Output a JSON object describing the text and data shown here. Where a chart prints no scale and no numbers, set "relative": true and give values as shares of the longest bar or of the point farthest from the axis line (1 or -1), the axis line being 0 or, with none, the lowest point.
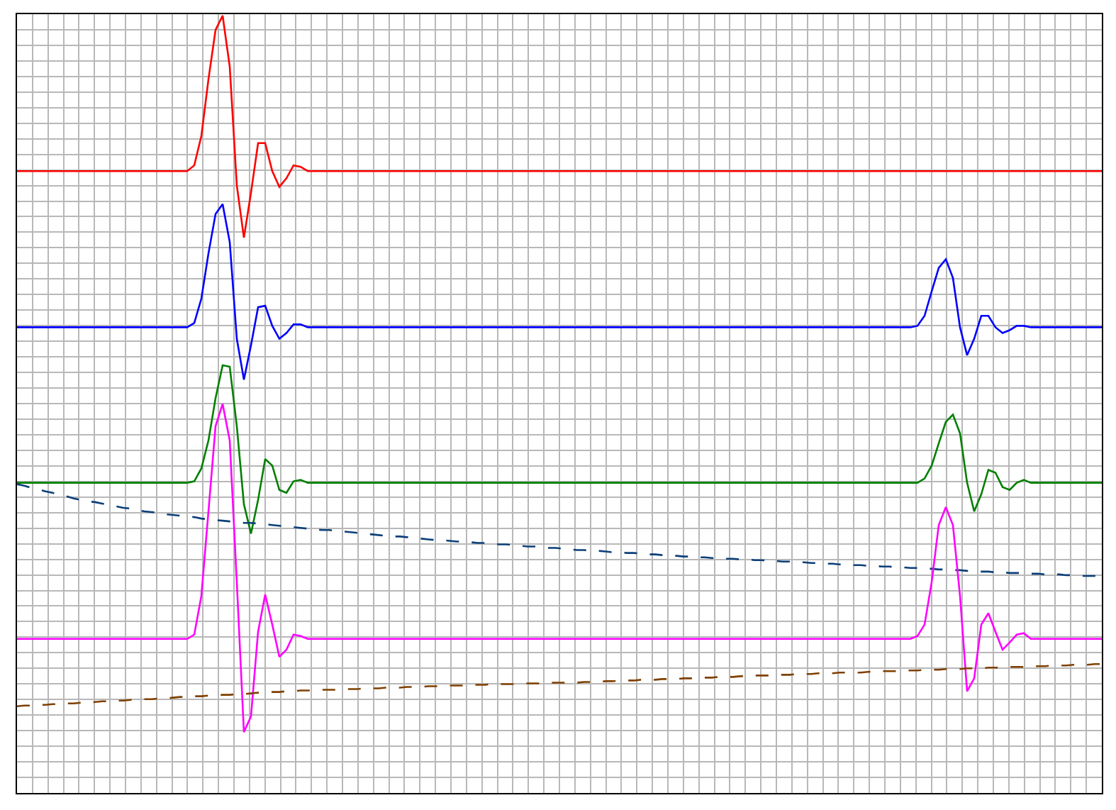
{
  "chart_data": {
    "type": "line",
    "relative": true,
    "grid": true,
    "marker": "none",
    "categories": [
      null,
      null,
      null,
      null,
      null,
      null,
      null,
      null,
      null,
      null,
      null,
      null,
      null,
      null,
      null,
      null,
      null,
      null,
      null,
      null,
      null,
      null,
      null,
      null,
      null,
      null,
      null,
      null,
      null,
      null,
      null,
      null,
      null,
      null,
      null,
      null,
      null,
      null,
      null,
      null,
      null,
      null,
      null,
      null,
      null,
      null,
      null,
      null,
      null,
      null,
      null,
      null,
      null,
      null,
      null,
      null,
      null,
      null,
      null,
      null,
      null,
      null,
      null,
      null,
      null,
      null,
      null,
      null,
      null,
      null,
      null,
      null,
      null,
      null,
      null,
      null,
      null,
      null,
      null,
      null,
      null,
      null,
      null,
      null,
      null,
      null,
      null,
      null,
      null,
      null,
      null,
      null,
      null,
      null,
      null,
      null,
      null,
      null,
      null,
      null,
      null,
      null,
      null,
      null,
      null,
      null,
      null,
      null,
      null,
      null,
      null,
      null,
      null,
      null,
      null,
      null,
      null,
      null,
      null,
      null,
      null,
      null,
      null,
      null,
      null,
      null,
      null,
      null,
      null,
      null,
      null,
      null,
      null,
      null,
      null,
      null,
      null,
      null,
      null,
      null,
      null,
      null,
      null,
      null,
      null,
      null,
      null,
      null,
      null,
      null,
      null,
      null,
      null,
      null
    ],
    "series": [
      {
        "color": "#ff0000",
        "line_style": "solid",
        "values": [
          0.783,
          0.783,
          0.783,
          0.783,
          0.783,
          0.783,
          0.783,
          0.783,
          0.783,
          0.783,
          0.783,
          0.783,
          0.783,
          0.783,
          0.783,
          0.783,
          0.783,
          0.783,
          0.783,
          0.783,
          0.783,
          0.783,
          0.783,
          0.783,
          0.783,
          0.791,
          0.832,
          0.911,
          0.98,
          1,
          0.929,
          0.763,
          0.69,
          0.753,
          0.822,
          0.822,
          0.783,
          0.761,
          0.773,
          0.791,
          0.789,
          0.783,
          0.783,
          0.783,
          0.783,
          0.783,
          0.783,
          0.783,
          0.783,
          0.783,
          0.783,
          0.783,
          0.783,
          0.783,
          0.783,
          0.783,
          0.783,
          0.783,
          0.783,
          0.783,
          0.783,
          0.783,
          0.783,
          0.783,
          0.783,
          0.783,
          0.783,
          0.783,
          0.783,
          0.783,
          0.783,
          0.783,
          0.783,
          0.783,
          0.783,
          0.783,
          0.783,
          0.783,
          0.783,
          0.783,
          0.783,
          0.783,
          0.783,
          0.783,
          0.783,
          0.783,
          0.783,
          0.783,
          0.783,
          0.783,
          0.783,
          0.783,
          0.783,
          0.783,
          0.783,
          0.783,
          0.783,
          0.783,
          0.783,
          0.783,
          0.783,
          0.783,
          0.783,
          0.783,
          0.783,
          0.783,
          0.783,
          0.783,
          0.783,
          0.783,
          0.783,
          0.783,
          0.783,
          0.783,
          0.783,
          0.783,
          0.783,
          0.783,
          0.783,
          0.783,
          0.783,
          0.783,
          0.783,
          0.783,
          0.783,
          0.783,
          0.783,
          0.783,
          0.783,
          0.783,
          0.783,
          0.783,
          0.783,
          0.783,
          0.783,
          0.783,
          0.783,
          0.783,
          0.783,
          0.783,
          0.783,
          0.783,
          0.783,
          0.783,
          0.783,
          0.783,
          0.783,
          0.783,
          0.783,
          0.783,
          0.783,
          0.783,
          0.783,
          0.783
        ]
      },
      {
        "color": "#0000ff",
        "line_style": "solid",
        "values": [
          0.565,
          0.565,
          0.565,
          0.565,
          0.565,
          0.565,
          0.565,
          0.565,
          0.565,
          0.565,
          0.565,
          0.565,
          0.565,
          0.565,
          0.565,
          0.565,
          0.565,
          0.565,
          0.565,
          0.565,
          0.565,
          0.565,
          0.565,
          0.565,
          0.565,
          0.571,
          0.605,
          0.668,
          0.723,
          0.737,
          0.684,
          0.549,
          0.492,
          0.54,
          0.593,
          0.595,
          0.567,
          0.549,
          0.557,
          0.569,
          0.569,
          0.565,
          0.565,
          0.565,
          0.565,
          0.565,
          0.565,
          0.565,
          0.565,
          0.565,
          0.565,
          0.565,
          0.565,
          0.565,
          0.565,
          0.565,
          0.565,
          0.565,
          0.565,
          0.565,
          0.565,
          0.565,
          0.565,
          0.565,
          0.565,
          0.565,
          0.565,
          0.565,
          0.565,
          0.565,
          0.565,
          0.565,
          0.565,
          0.565,
          0.565,
          0.565,
          0.565,
          0.565,
          0.565,
          0.565,
          0.565,
          0.565,
          0.565,
          0.565,
          0.565,
          0.565,
          0.565,
          0.565,
          0.565,
          0.565,
          0.565,
          0.565,
          0.565,
          0.565,
          0.565,
          0.565,
          0.565,
          0.565,
          0.565,
          0.565,
          0.565,
          0.565,
          0.565,
          0.565,
          0.565,
          0.565,
          0.565,
          0.565,
          0.565,
          0.565,
          0.565,
          0.565,
          0.565,
          0.565,
          0.565,
          0.565,
          0.565,
          0.565,
          0.565,
          0.565,
          0.565,
          0.565,
          0.565,
          0.565,
          0.565,
          0.565,
          0.565,
          0.567,
          0.581,
          0.615,
          0.648,
          0.66,
          0.634,
          0.565,
          0.526,
          0.549,
          0.581,
          0.581,
          0.565,
          0.557,
          0.561,
          0.567,
          0.567,
          0.565,
          0.565,
          0.565,
          0.565,
          0.565,
          0.565,
          0.565,
          0.565,
          0.565,
          0.565,
          0.565
        ]
      },
      {
        "color": "#008000",
        "line_style": "solid",
        "values": [
          0.348,
          0.348,
          0.348,
          0.348,
          0.348,
          0.348,
          0.348,
          0.348,
          0.348,
          0.348,
          0.348,
          0.348,
          0.348,
          0.348,
          0.348,
          0.348,
          0.348,
          0.348,
          0.348,
          0.348,
          0.348,
          0.348,
          0.348,
          0.348,
          0.348,
          0.35,
          0.368,
          0.407,
          0.466,
          0.512,
          0.51,
          0.427,
          0.318,
          0.277,
          0.324,
          0.381,
          0.372,
          0.338,
          0.334,
          0.35,
          0.352,
          0.348,
          0.348,
          0.348,
          0.348,
          0.348,
          0.348,
          0.348,
          0.348,
          0.348,
          0.348,
          0.348,
          0.348,
          0.348,
          0.348,
          0.348,
          0.348,
          0.348,
          0.348,
          0.348,
          0.348,
          0.348,
          0.348,
          0.348,
          0.348,
          0.348,
          0.348,
          0.348,
          0.348,
          0.348,
          0.348,
          0.348,
          0.348,
          0.348,
          0.348,
          0.348,
          0.348,
          0.348,
          0.348,
          0.348,
          0.348,
          0.348,
          0.348,
          0.348,
          0.348,
          0.348,
          0.348,
          0.348,
          0.348,
          0.348,
          0.348,
          0.348,
          0.348,
          0.348,
          0.348,
          0.348,
          0.348,
          0.348,
          0.348,
          0.348,
          0.348,
          0.348,
          0.348,
          0.348,
          0.348,
          0.348,
          0.348,
          0.348,
          0.348,
          0.348,
          0.348,
          0.348,
          0.348,
          0.348,
          0.348,
          0.348,
          0.348,
          0.348,
          0.348,
          0.348,
          0.348,
          0.348,
          0.348,
          0.348,
          0.348,
          0.348,
          0.348,
          0.348,
          0.354,
          0.372,
          0.403,
          0.433,
          0.443,
          0.417,
          0.348,
          0.308,
          0.332,
          0.366,
          0.362,
          0.342,
          0.338,
          0.348,
          0.352,
          0.348,
          0.348,
          0.348,
          0.348,
          0.348,
          0.348,
          0.348,
          0.348,
          0.348,
          0.348,
          0.348
        ]
      },
      {
        "color": "#0b3f78",
        "line_style": "dashed",
        "values": [
          0.346,
          0.344,
          0.341,
          0.339,
          0.336,
          0.334,
          0.331,
          0.329,
          0.326,
          0.324,
          0.322,
          0.321,
          0.319,
          0.317,
          0.315,
          0.313,
          0.312,
          0.31,
          0.308,
          0.307,
          0.306,
          0.304,
          0.303,
          0.302,
          0.301,
          0.3,
          0.298,
          0.297,
          0.296,
          0.295,
          0.294,
          0.293,
          0.292,
          0.292,
          0.291,
          0.29,
          0.289,
          0.288,
          0.287,
          0.286,
          0.285,
          0.284,
          0.283,
          0.282,
          0.282,
          0.281,
          0.28,
          0.279,
          0.278,
          0.277,
          0.276,
          0.275,
          0.274,
          0.273,
          0.273,
          0.272,
          0.271,
          0.27,
          0.269,
          0.268,
          0.268,
          0.267,
          0.266,
          0.266,
          0.265,
          0.264,
          0.264,
          0.263,
          0.262,
          0.262,
          0.261,
          0.26,
          0.259,
          0.259,
          0.258,
          0.257,
          0.257,
          0.256,
          0.255,
          0.254,
          0.254,
          0.253,
          0.253,
          0.252,
          0.251,
          0.251,
          0.25,
          0.25,
          0.249,
          0.248,
          0.248,
          0.247,
          0.247,
          0.246,
          0.245,
          0.245,
          0.244,
          0.244,
          0.243,
          0.243,
          0.242,
          0.242,
          0.241,
          0.241,
          0.24,
          0.24,
          0.239,
          0.239,
          0.238,
          0.238,
          0.237,
          0.237,
          0.236,
          0.236,
          0.235,
          0.235,
          0.234,
          0.234,
          0.233,
          0.233,
          0.232,
          0.232,
          0.231,
          0.231,
          0.23,
          0.23,
          0.229,
          0.229,
          0.228,
          0.228,
          0.227,
          0.227,
          0.226,
          0.226,
          0.225,
          0.225,
          0.224,
          0.224,
          0.223,
          0.223,
          0.222,
          0.222,
          0.222,
          0.221,
          0.221,
          0.22,
          0.22,
          0.22,
          0.219,
          0.219,
          0.218,
          0.218,
          0.218,
          0.217
        ]
      },
      {
        "color": "#ff00ff",
        "line_style": "solid",
        "values": [
          0.13,
          0.13,
          0.13,
          0.13,
          0.13,
          0.13,
          0.13,
          0.13,
          0.13,
          0.13,
          0.13,
          0.13,
          0.13,
          0.13,
          0.13,
          0.13,
          0.13,
          0.13,
          0.13,
          0.13,
          0.13,
          0.13,
          0.13,
          0.13,
          0.13,
          0.136,
          0.19,
          0.308,
          0.427,
          0.458,
          0.407,
          0.209,
          0,
          0.022,
          0.14,
          0.192,
          0.15,
          0.105,
          0.115,
          0.136,
          0.134,
          0.13,
          0.13,
          0.13,
          0.13,
          0.13,
          0.13,
          0.13,
          0.13,
          0.13,
          0.13,
          0.13,
          0.13,
          0.13,
          0.13,
          0.13,
          0.13,
          0.13,
          0.13,
          0.13,
          0.13,
          0.13,
          0.13,
          0.13,
          0.13,
          0.13,
          0.13,
          0.13,
          0.13,
          0.13,
          0.13,
          0.13,
          0.13,
          0.13,
          0.13,
          0.13,
          0.13,
          0.13,
          0.13,
          0.13,
          0.13,
          0.13,
          0.13,
          0.13,
          0.13,
          0.13,
          0.13,
          0.13,
          0.13,
          0.13,
          0.13,
          0.13,
          0.13,
          0.13,
          0.13,
          0.13,
          0.13,
          0.13,
          0.13,
          0.13,
          0.13,
          0.13,
          0.13,
          0.13,
          0.13,
          0.13,
          0.13,
          0.13,
          0.13,
          0.13,
          0.13,
          0.13,
          0.13,
          0.13,
          0.13,
          0.13,
          0.13,
          0.13,
          0.13,
          0.13,
          0.13,
          0.13,
          0.13,
          0.13,
          0.13,
          0.13,
          0.13,
          0.134,
          0.15,
          0.209,
          0.289,
          0.314,
          0.289,
          0.19,
          0.057,
          0.075,
          0.15,
          0.166,
          0.14,
          0.115,
          0.125,
          0.136,
          0.138,
          0.13,
          0.13,
          0.13,
          0.13,
          0.13,
          0.13,
          0.13,
          0.13,
          0.13,
          0.13,
          0.13
        ]
      },
      {
        "color": "#7f4000",
        "line_style": "dashed",
        "values": [
          0.036,
          0.037,
          0.037,
          0.038,
          0.038,
          0.039,
          0.039,
          0.04,
          0.04,
          0.041,
          0.041,
          0.042,
          0.043,
          0.043,
          0.044,
          0.044,
          0.045,
          0.045,
          0.046,
          0.046,
          0.047,
          0.047,
          0.048,
          0.049,
          0.049,
          0.05,
          0.05,
          0.051,
          0.051,
          0.052,
          0.052,
          0.053,
          0.053,
          0.054,
          0.055,
          0.055,
          0.056,
          0.056,
          0.057,
          0.057,
          0.058,
          0.058,
          0.058,
          0.059,
          0.059,
          0.059,
          0.06,
          0.06,
          0.06,
          0.061,
          0.061,
          0.061,
          0.062,
          0.062,
          0.062,
          0.063,
          0.063,
          0.063,
          0.064,
          0.064,
          0.064,
          0.065,
          0.065,
          0.065,
          0.066,
          0.066,
          0.066,
          0.067,
          0.067,
          0.067,
          0.067,
          0.068,
          0.068,
          0.068,
          0.068,
          0.069,
          0.069,
          0.069,
          0.069,
          0.069,
          0.07,
          0.07,
          0.07,
          0.071,
          0.071,
          0.072,
          0.072,
          0.072,
          0.073,
          0.073,
          0.073,
          0.074,
          0.074,
          0.074,
          0.075,
          0.075,
          0.076,
          0.076,
          0.076,
          0.077,
          0.077,
          0.077,
          0.078,
          0.078,
          0.079,
          0.079,
          0.079,
          0.08,
          0.08,
          0.08,
          0.081,
          0.081,
          0.081,
          0.082,
          0.082,
          0.082,
          0.083,
          0.083,
          0.083,
          0.083,
          0.084,
          0.084,
          0.085,
          0.085,
          0.085,
          0.086,
          0.086,
          0.086,
          0.087,
          0.087,
          0.087,
          0.088,
          0.088,
          0.088,
          0.089,
          0.089,
          0.089,
          0.09,
          0.09,
          0.09,
          0.091,
          0.091,
          0.091,
          0.092,
          0.092,
          0.092,
          0.093,
          0.093,
          0.093,
          0.094,
          0.094,
          0.094,
          0.095,
          0.095
        ]
      }
    ]
  }
}
